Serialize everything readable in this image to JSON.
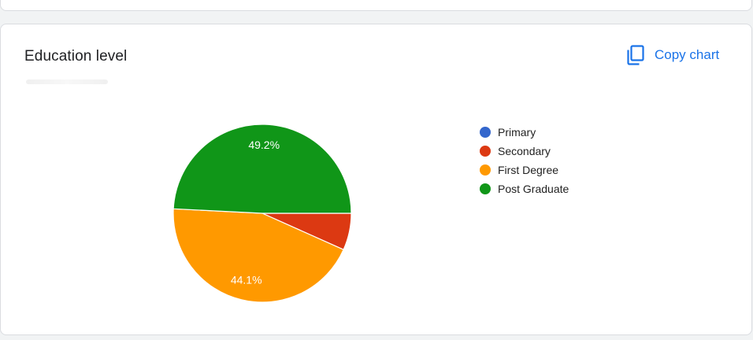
{
  "card": {
    "title": "Education level",
    "copy_label": "Copy chart",
    "copy_icon": "copy-icon",
    "accent_color": "#1a73e8"
  },
  "chart_data": {
    "type": "pie",
    "categories": [
      "Primary",
      "Secondary",
      "First Degree",
      "Post Graduate"
    ],
    "values": [
      0,
      6.7,
      44.1,
      49.2
    ],
    "data_labels": [
      "",
      "",
      "44.1%",
      "49.2%"
    ],
    "colors": [
      "#3366cc",
      "#dc3912",
      "#ff9900",
      "#109618"
    ],
    "legend_position": "right",
    "title": "Education level"
  }
}
